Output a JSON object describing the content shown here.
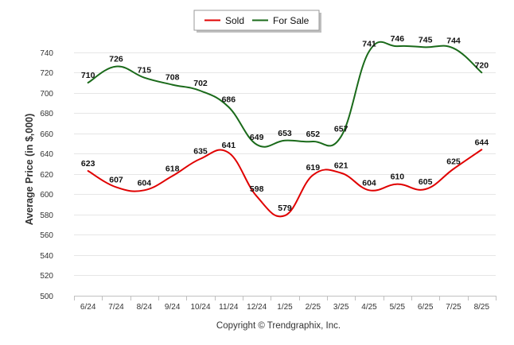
{
  "chart_data": {
    "type": "line",
    "categories": [
      "6/24",
      "7/24",
      "8/24",
      "9/24",
      "10/24",
      "11/24",
      "12/24",
      "1/25",
      "2/25",
      "3/25",
      "4/25",
      "5/25",
      "6/25",
      "7/25",
      "8/25"
    ],
    "series": [
      {
        "name": "Sold",
        "color": "#e00000",
        "values": [
          623,
          607,
          604,
          618,
          635,
          641,
          598,
          579,
          619,
          621,
          604,
          610,
          605,
          625,
          644
        ]
      },
      {
        "name": "For Sale",
        "color": "#1a6a1a",
        "values": [
          710,
          726,
          715,
          708,
          702,
          686,
          649,
          653,
          652,
          657,
          741,
          746,
          745,
          744,
          720
        ]
      }
    ],
    "ylabel": "Average Price (in $,000)",
    "ylim": [
      500,
      750
    ],
    "yticks": [
      500,
      520,
      540,
      560,
      580,
      600,
      620,
      640,
      660,
      680,
      700,
      720,
      740
    ],
    "grid": true,
    "legend": "top-center",
    "credit": "Copyright © Trendgraphix, Inc."
  }
}
